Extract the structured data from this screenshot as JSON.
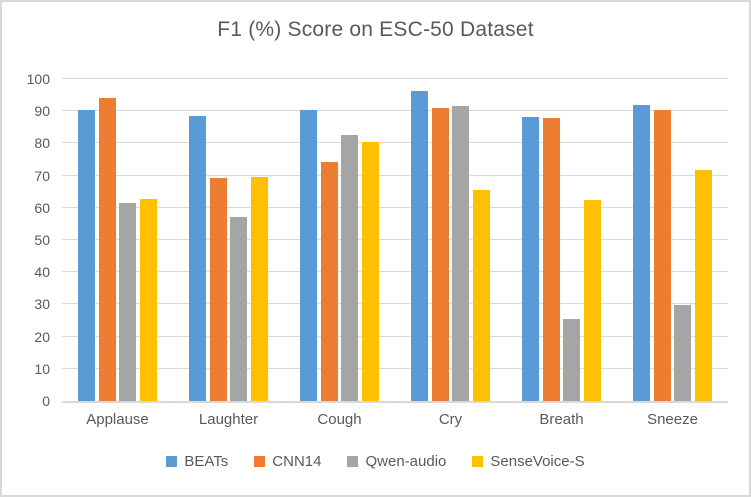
{
  "chart_data": {
    "type": "bar",
    "title": "F1 (%) Score on ESC-50 Dataset",
    "categories": [
      "Applause",
      "Laughter",
      "Cough",
      "Cry",
      "Breath",
      "Sneeze"
    ],
    "series": [
      {
        "name": "BEATs",
        "color": "#5B9BD5",
        "values": [
          90.4,
          88.5,
          90.3,
          96.2,
          88.2,
          91.9
        ]
      },
      {
        "name": "CNN14",
        "color": "#ED7D31",
        "values": [
          94.0,
          69.3,
          74.2,
          91.0,
          87.9,
          90.3
        ]
      },
      {
        "name": "Qwen-audio",
        "color": "#A5A5A5",
        "values": [
          61.4,
          57.0,
          82.5,
          91.6,
          25.4,
          29.8
        ]
      },
      {
        "name": "SenseVoice-S",
        "color": "#FFC000",
        "values": [
          62.8,
          69.6,
          80.3,
          65.4,
          62.3,
          71.8
        ]
      }
    ],
    "xlabel": "",
    "ylabel": "",
    "ylim": [
      0,
      100
    ],
    "y_ticks": [
      0,
      10,
      20,
      30,
      40,
      50,
      60,
      70,
      80,
      90,
      100
    ],
    "grid": true,
    "legend_position": "bottom"
  },
  "colors": {
    "gridline": "#D9D9D9",
    "axis_line": "#D9D9D9",
    "text": "#595959",
    "border": "#D9D9D9",
    "background": "#FFFFFF"
  }
}
